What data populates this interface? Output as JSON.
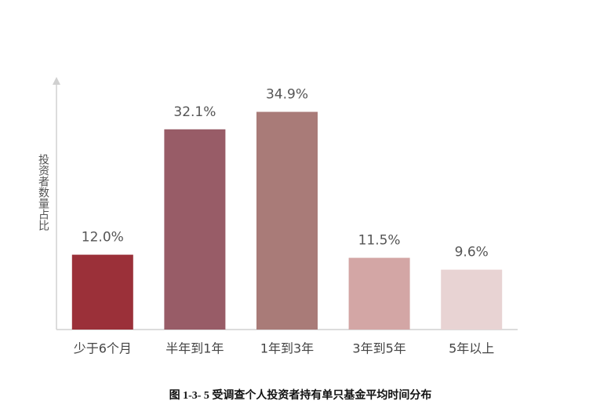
{
  "chart_data": {
    "type": "bar",
    "title": "图 1-3- 5  受调查个人投资者持有单只基金平均时间分布",
    "y_label": "投资者数量占比",
    "categories": [
      "少于6个月",
      "半年到1年",
      "1年到3年",
      "3年到5年",
      "5年以上"
    ],
    "values": [
      12.0,
      32.1,
      34.9,
      11.5,
      9.6
    ],
    "value_labels": [
      "12.0%",
      "32.1%",
      "34.9%",
      "11.5%",
      "9.6%"
    ],
    "colors": [
      "#9b3039",
      "#985c67",
      "#a97b78",
      "#d3a6a5",
      "#e8d3d3"
    ],
    "ylim": [
      0,
      40
    ]
  }
}
